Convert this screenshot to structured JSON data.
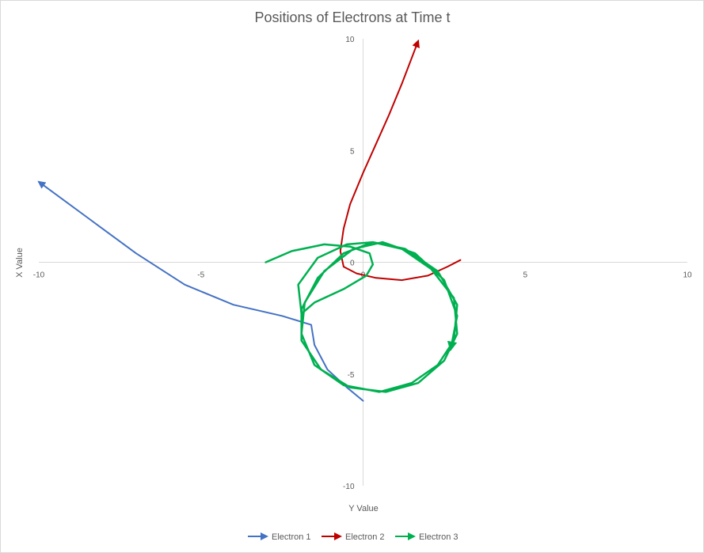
{
  "chart_data": {
    "type": "scatter",
    "title": "Positions of Electrons at Time t",
    "xlabel": "Y Value",
    "ylabel": "X Value",
    "xlim": [
      -10,
      10
    ],
    "ylim": [
      -10,
      10
    ],
    "xticks": [
      -10,
      -5,
      0,
      5,
      10
    ],
    "yticks": [
      -10,
      -5,
      0,
      5,
      10
    ],
    "xtick_labels": [
      "-10",
      "-5",
      "0",
      "5",
      "10"
    ],
    "ytick_labels": [
      "-10",
      "-5",
      "0",
      "5",
      "10"
    ],
    "grid": false,
    "legend_position": "bottom",
    "series": [
      {
        "name": "Electron 1",
        "color": "#4472c4",
        "points": [
          [
            0.0,
            -6.2
          ],
          [
            -0.5,
            -5.6
          ],
          [
            -1.1,
            -4.8
          ],
          [
            -1.5,
            -3.7
          ],
          [
            -1.6,
            -2.8
          ],
          [
            -2.5,
            -2.4
          ],
          [
            -4.0,
            -1.9
          ],
          [
            -5.5,
            -1.0
          ],
          [
            -7.0,
            0.4
          ],
          [
            -8.5,
            2.0
          ],
          [
            -10.0,
            3.6
          ]
        ]
      },
      {
        "name": "Electron 2",
        "color": "#c00000",
        "points": [
          [
            3.0,
            0.1
          ],
          [
            2.6,
            -0.2
          ],
          [
            2.0,
            -0.6
          ],
          [
            1.2,
            -0.8
          ],
          [
            0.4,
            -0.7
          ],
          [
            -0.2,
            -0.5
          ],
          [
            -0.6,
            -0.2
          ],
          [
            -0.7,
            0.5
          ],
          [
            -0.6,
            1.5
          ],
          [
            -0.4,
            2.6
          ],
          [
            0.0,
            4.0
          ],
          [
            0.4,
            5.3
          ],
          [
            0.8,
            6.6
          ],
          [
            1.2,
            8.0
          ],
          [
            1.7,
            9.9
          ]
        ]
      },
      {
        "name": "Electron 3",
        "color": "#00b050",
        "points": [
          [
            -3.0,
            0.0
          ],
          [
            -2.2,
            0.5
          ],
          [
            -1.2,
            0.8
          ],
          [
            -0.4,
            0.7
          ],
          [
            0.2,
            0.4
          ],
          [
            0.3,
            -0.1
          ],
          [
            0.1,
            -0.6
          ],
          [
            -0.6,
            -1.2
          ],
          [
            -1.5,
            -1.8
          ],
          [
            -1.9,
            -2.3
          ],
          [
            -2.0,
            -1.0
          ],
          [
            -1.4,
            0.2
          ],
          [
            -0.5,
            0.8
          ],
          [
            0.3,
            0.9
          ],
          [
            1.2,
            0.6
          ],
          [
            2.1,
            -0.3
          ],
          [
            2.8,
            -1.6
          ],
          [
            2.9,
            -3.2
          ],
          [
            2.5,
            -4.4
          ],
          [
            1.7,
            -5.4
          ],
          [
            0.7,
            -5.8
          ],
          [
            -0.4,
            -5.6
          ],
          [
            -1.3,
            -4.8
          ],
          [
            -1.9,
            -3.5
          ],
          [
            -1.9,
            -2.1
          ],
          [
            -1.4,
            -0.7
          ],
          [
            -0.6,
            0.4
          ],
          [
            0.3,
            0.9
          ],
          [
            1.3,
            0.6
          ],
          [
            2.3,
            -0.4
          ],
          [
            2.9,
            -1.9
          ],
          [
            2.8,
            -3.5
          ],
          [
            2.3,
            -4.6
          ],
          [
            1.5,
            -5.4
          ],
          [
            0.5,
            -5.8
          ],
          [
            -0.6,
            -5.5
          ],
          [
            -1.5,
            -4.6
          ],
          [
            -1.9,
            -3.2
          ],
          [
            -1.8,
            -1.8
          ],
          [
            -1.2,
            -0.4
          ],
          [
            -0.3,
            0.6
          ],
          [
            0.6,
            0.9
          ],
          [
            1.6,
            0.4
          ],
          [
            2.5,
            -0.8
          ],
          [
            2.9,
            -2.4
          ],
          [
            2.7,
            -3.9
          ]
        ]
      }
    ]
  }
}
